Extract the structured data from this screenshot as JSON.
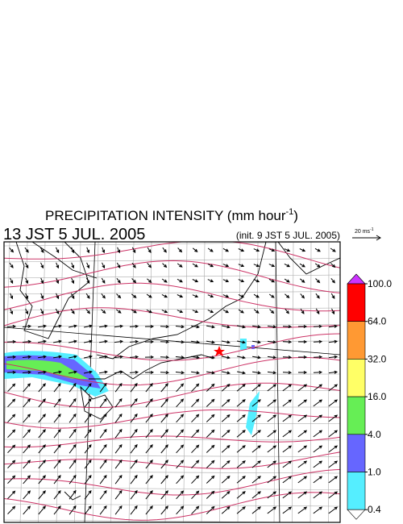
{
  "header": {
    "title_main": "PRECIPITATION INTENSITY (mm hour",
    "title_exponent": "-1",
    "title_close": ")",
    "valid_time": "13 JST 5 JUL. 2005",
    "init_time": "(init. 9 JST 5 JUL. 2005)"
  },
  "vector_scale": {
    "text": "20 ms",
    "exponent": "-1"
  },
  "colorbar": {
    "levels": [
      {
        "value": 100,
        "label": "100.0"
      },
      {
        "value": 64,
        "label": "64.0"
      },
      {
        "value": 32,
        "label": "32.0"
      },
      {
        "value": 16,
        "label": "16.0"
      },
      {
        "value": 4,
        "label": "4.0"
      },
      {
        "value": 1,
        "label": "1.0"
      },
      {
        "value": 0.4,
        "label": "0.4"
      }
    ],
    "colors": [
      "#ff0000",
      "#ff9933",
      "#ffff66",
      "#66ee55",
      "#6666ff",
      "#55eeff"
    ],
    "over_color": "#cc33ff",
    "under_color": "#ffffff"
  }
}
